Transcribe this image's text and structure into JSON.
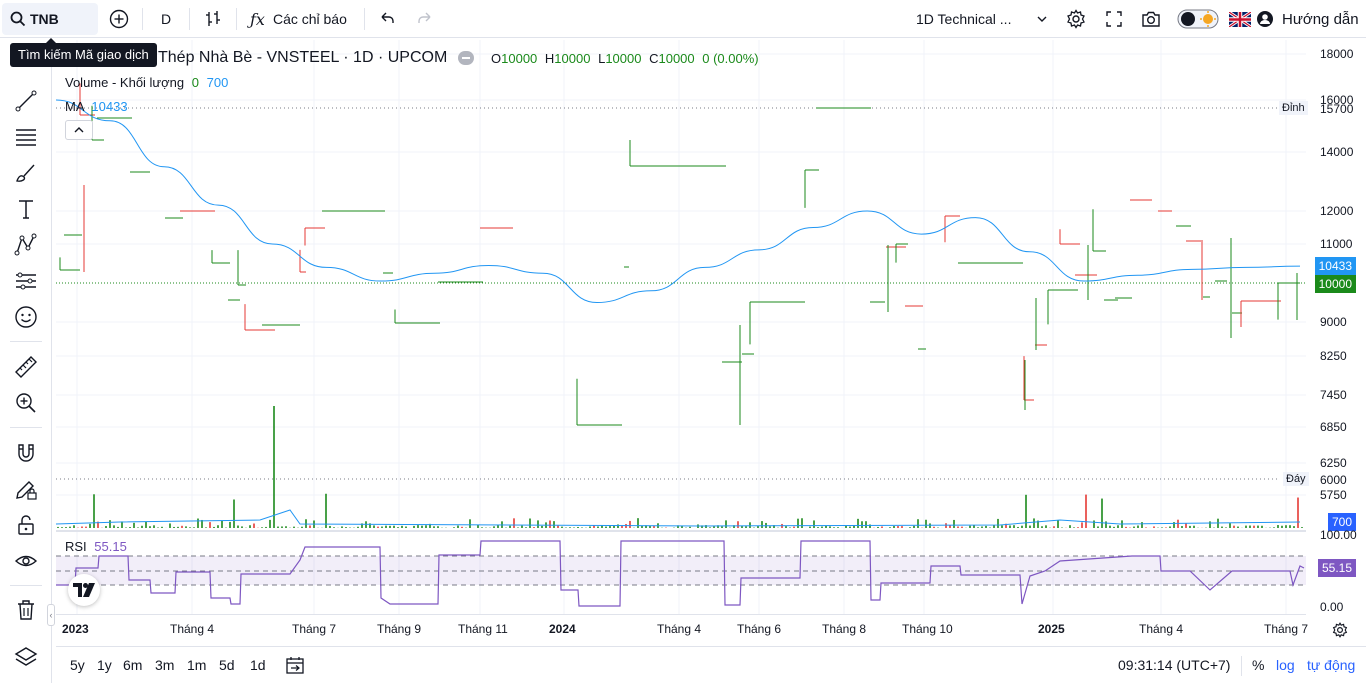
{
  "topbar": {
    "symbol": "TNB",
    "interval": "D",
    "indicators_label": "Các chỉ báo",
    "layout_name": "1D Technical ...",
    "help_label": "Hướng dẫn"
  },
  "tooltip": {
    "text": "Tìm kiếm Mã giao dịch"
  },
  "legend": {
    "title": "Thép Nhà Bè - VNSTEEL · 1D · UPCOM",
    "ohlc": {
      "o_key": "O",
      "o_val": "10000",
      "h_key": "H",
      "h_val": "10000",
      "l_key": "L",
      "l_val": "10000",
      "c_key": "C",
      "c_val": "10000",
      "change": "0 (0.00%)"
    },
    "volume_label": "Volume - Khối lượng",
    "volume_v1": "0",
    "volume_v2": "700",
    "ma_label": "MA",
    "ma_value": "10433"
  },
  "price_axis": {
    "ticks": [
      "18000",
      "16000",
      "14000",
      "12000",
      "11000",
      "9000",
      "8250",
      "7450",
      "6850",
      "6250",
      "5750"
    ],
    "peak_label": "Đỉnh",
    "peak_value": "15700",
    "trough_label": "Đáy",
    "trough_value": "6000",
    "ma_tag": "10433",
    "price_tag": "10000",
    "volume_tag": "700"
  },
  "rsi": {
    "label": "RSI",
    "value": "55.15",
    "axis": [
      "100.00",
      "0.00"
    ],
    "tag": "55.15"
  },
  "time_axis": {
    "labels": [
      "2023",
      "Tháng 4",
      "Tháng 7",
      "Tháng 9",
      "Tháng 11",
      "2024",
      "Tháng 4",
      "Tháng 6",
      "Tháng 8",
      "Tháng 10",
      "2025",
      "Tháng 4",
      "Tháng 7"
    ]
  },
  "bottombar": {
    "ranges": [
      "5y",
      "1y",
      "6m",
      "3m",
      "1m",
      "5d",
      "1d"
    ],
    "clock": "09:31:14 (UTC+7)",
    "pct": "%",
    "log": "log",
    "auto": "tự động"
  },
  "colors": {
    "up": "#1b8a1b",
    "down": "#e53935",
    "ma": "#2196f3",
    "rsi": "#7e57c2",
    "accent": "#2962ff"
  },
  "chart_data": {
    "type": "line",
    "title": "Thép Nhà Bè - VNSTEEL · 1D · UPCOM",
    "series": [
      {
        "name": "MA",
        "values": [
          16000,
          15200,
          13500,
          12200,
          11000,
          10400,
          10050,
          10250,
          10450,
          10250,
          9500,
          9800,
          10400,
          10850,
          11500,
          12000,
          11300,
          11800,
          10800,
          10050,
          10200,
          10350,
          10400,
          10433
        ]
      }
    ],
    "ylim": [
      5500,
      18500
    ],
    "rsi_ylim": [
      0,
      100
    ]
  }
}
